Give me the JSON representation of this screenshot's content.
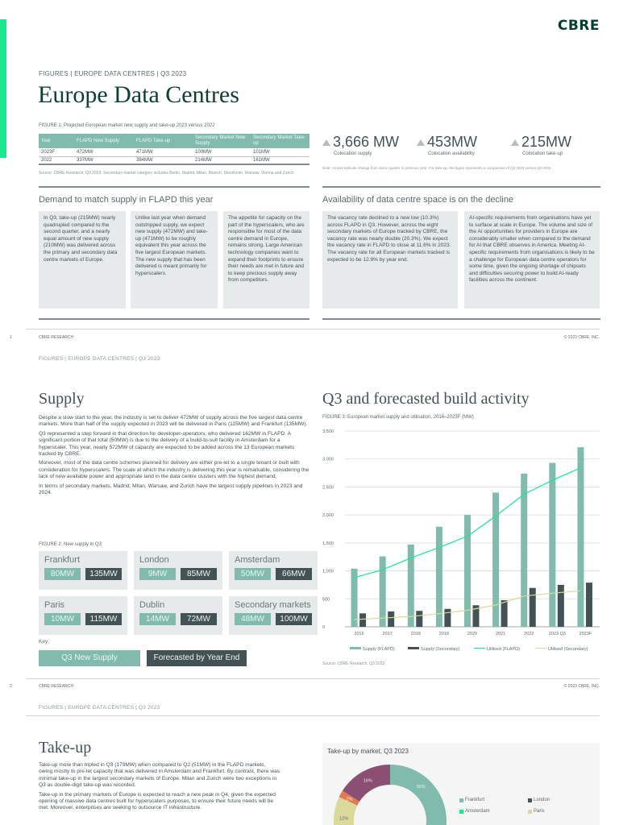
{
  "brand": {
    "logo": "CBRE",
    "accent": "#17e88f",
    "dark_green": "#003f2d"
  },
  "page1": {
    "breadcrumb": "FIGURES  |  EUROPE DATA CENTRES  |  Q3 2023",
    "title": "Europe Data Centres",
    "figure1": {
      "caption": "FIGURE 1: Projected European market new supply and take-up 2023 versus 2022",
      "headers": [
        "Year",
        "FLAPD New Supply",
        "FLAPD Take-up",
        "Secondary Market New Supply",
        "Secondary Market Take-up"
      ],
      "rows": [
        [
          "2023F",
          "472MW",
          "471MW",
          "100MW",
          "101MW"
        ],
        [
          "2022",
          "337MW",
          "384MW",
          "214MW",
          "161MW"
        ]
      ],
      "source": "Source: CBRE Research, Q3 2023; Secondary market category includes Berlin, Madrid, Milan, Munich, Stockholm, Warsaw, Vienna and Zurich"
    },
    "stats": [
      {
        "value": "3,666 MW",
        "label": "Colocation supply",
        "icon": "triangle-up-icon"
      },
      {
        "value": "453MW",
        "label": "Colocation availability",
        "icon": "triangle-up-icon"
      },
      {
        "value": "215MW",
        "label": "Colocation take-up",
        "icon": "triangle-up-icon"
      }
    ],
    "stats_note": "Note: Arrows indicate change from same quarter in previous year. For take-up, the figure represents a comparison of Q3 2023 versus Q3 2022.",
    "demand": {
      "heading": "Demand to match supply in FLAPD this year",
      "cards": [
        "In Q3, take-up (215MW) nearly quadrupled compared to the second quarter, and a nearly equal amount of new supply (210MW) was delivered across the primary and secondary data centre markets of Europe.",
        "Unlike last year when demand outstripped supply, we expect new supply (472MW) and take-up (471MW) to be roughly equivalent this year across the five largest European markets. The new supply that has been delivered is meant primarily for hyperscalers.",
        "The appetite for capacity on the part of the hyperscalers, who are responsible for most of the data centre demand in Europe, remains strong. Large American technology companies want to expand their footprints to ensure their needs are met in future and to keep precious supply away from competitors."
      ]
    },
    "availability": {
      "heading": "Availability of data centre space is on the decline",
      "cards": [
        "The vacancy rate declined to a new low (10.3%) across FLAPD in Q3. However, across the eight secondary markets of Europe tracked by CBRE, the vacancy rate was nearly double (20.3%). We expect the vacancy rate in FLAPD to close at 11.6% in 2023. The vacancy rate for all European markets tracked is expected to be 12.9% by year end.",
        "AI-specific requirements from organisations have yet to surface at scale in Europe. The volume and size of the AI opportunities for providers in Europe are considerably smaller when compared to the demand for AI that CBRE observes in America. Meeting AI-specific requirements from organisations is likely to be a challenge for European data centre operators for some time, given the ongoing shortage of chipsets and difficulties securing power to build AI-ready facilities across the continent."
      ]
    },
    "footer": {
      "page_num": "1",
      "left": "CBRE RESEARCH",
      "right": "© 2023 CBRE, INC."
    }
  },
  "page2": {
    "breadcrumb": "FIGURES  |  EUROPE DATA CENTRES  |  Q3 2023",
    "supply": {
      "heading": "Supply",
      "paragraphs": [
        "Despite a slow start to the year, the industry is set to deliver 472MW of supply across the five largest data centre markets. More than half of the supply expected in 2023 will be delivered in Paris (115MW) and Frankfurt (135MW).",
        "Q3 represented a step forward in that direction for developer-operators, who delivered 162MW in FLAPD. A significant portion of that total (50MW) is due to the delivery of a build-to-suit facility in Amsterdam for a hyperscaler. This year, nearly 572MW of capacity are expected to be added across the 13 European markets tracked by CBRE.",
        "Moreover, most of the data centre schemes planned for delivery are either pre-let to a single tenant or built with consideration for hyperscalers. The scale at which the industry is delivering this year is remarkable, considering the lack of new available power and appropriate land in the data centre clusters with the highest demand.",
        "In terms of secondary markets, Madrid, Milan, Warsaw, and Zurich have the largest supply pipelines in 2023 and 2024."
      ]
    },
    "figure2": {
      "caption": "FIGURE 2: New supply in Q3",
      "markets": [
        {
          "name": "Frankfurt",
          "q3": "80MW",
          "forecast": "135MW"
        },
        {
          "name": "London",
          "q3": "9MW",
          "forecast": "85MW"
        },
        {
          "name": "Amsterdam",
          "q3": "50MW",
          "forecast": "66MW"
        },
        {
          "name": "Paris",
          "q3": "10MW",
          "forecast": "115MW"
        },
        {
          "name": "Dublin",
          "q3": "14MW",
          "forecast": "72MW"
        },
        {
          "name": "Secondary markets",
          "q3": "48MW",
          "forecast": "100MW"
        }
      ],
      "key_label": "Key:",
      "key_q3": "Q3 New Supply",
      "key_forecast": "Forecasted by Year End",
      "colors": {
        "q3": "#80bbad",
        "forecast": "#435254"
      }
    },
    "build": {
      "heading": "Q3 and forecasted build activity",
      "caption": "FIGURE 3: European market supply and utilisation, 2016–2023F (MW)",
      "source": "Source: CBRE Research, Q3 2023"
    },
    "footer": {
      "page_num": "2",
      "left": "CBRE RESEARCH",
      "right": "© 2023 CBRE, INC."
    }
  },
  "page3": {
    "breadcrumb": "FIGURES  |  EUROPE DATA CENTRES  |  Q3 2023",
    "takeup": {
      "heading": "Take-up",
      "paragraphs": [
        "Take-up more than tripled in Q3 (179MW) when compared to Q2 (51MW) in the FLAPD markets, owing mostly to pre-let capacity that was delivered in Amsterdam and Frankfurt. By contrast, there was minimal take-up in the largest secondary markets of Europe. Milan and Zurich were two exceptions in Q3 as double-digit take-up was recorded.",
        "Take-up in the primary markets of Europe is expected to reach a new peak in Q4, given the expected opening of massive data centres built for hyperscalers purposes, to ensure their future needs will be met. Moreover, enterprises are seeking to outsource IT infrastructure."
      ]
    },
    "donut": {
      "title": "Take-up by market, Q3 2023",
      "legend": [
        {
          "label": "Frankfurt",
          "color": "#80bbad"
        },
        {
          "label": "London",
          "color": "#435254"
        },
        {
          "label": "Amsterdam",
          "color": "#17e88f"
        },
        {
          "label": "Paris",
          "color": "#dbd99a"
        }
      ]
    }
  },
  "chart_data": [
    {
      "type": "bar",
      "title": "European market supply and utilisation, 2016–2023F (MW)",
      "categories": [
        "2016",
        "2017",
        "2018",
        "2019",
        "2020",
        "2021",
        "2022",
        "2023 Q3",
        "2023F"
      ],
      "series": [
        {
          "name": "Supply (FLAPD)",
          "kind": "bar",
          "color": "#80bbad",
          "values": [
            1040,
            1260,
            1470,
            1790,
            2000,
            2400,
            2740,
            2930,
            3210
          ]
        },
        {
          "name": "Supply (Secondary)",
          "kind": "bar",
          "color": "#435254",
          "values": [
            240,
            275,
            285,
            320,
            385,
            475,
            695,
            750,
            790
          ]
        },
        {
          "name": "Utilised (FLAPD)",
          "kind": "line",
          "color": "#17e88f",
          "values": [
            880,
            1020,
            1230,
            1420,
            1620,
            1980,
            2370,
            2620,
            2840
          ]
        },
        {
          "name": "Utilised (Secondary)",
          "kind": "line",
          "color": "#dbd99a",
          "values": [
            130,
            155,
            185,
            235,
            295,
            390,
            550,
            600,
            645
          ]
        }
      ],
      "xlabel": "",
      "ylabel": "MW",
      "ylim": [
        0,
        3500
      ],
      "yticks": [
        "0",
        "500",
        "1,000",
        "1,500",
        "2,000",
        "2,500",
        "3,000",
        "3,500"
      ],
      "grid": true,
      "legend_position": "bottom"
    },
    {
      "type": "pie",
      "title": "Take-up by market, Q3 2023",
      "visible_slices": [
        {
          "label": "Frankfurt",
          "value": 30,
          "color": "#80bbad"
        },
        {
          "label": "Paris",
          "value": 12,
          "color": "#dbd99a"
        },
        {
          "label": "Other",
          "value": 2,
          "color": "#e07b4f"
        },
        {
          "label": "Other",
          "value": 16,
          "color": "#8a4f72"
        }
      ]
    }
  ]
}
